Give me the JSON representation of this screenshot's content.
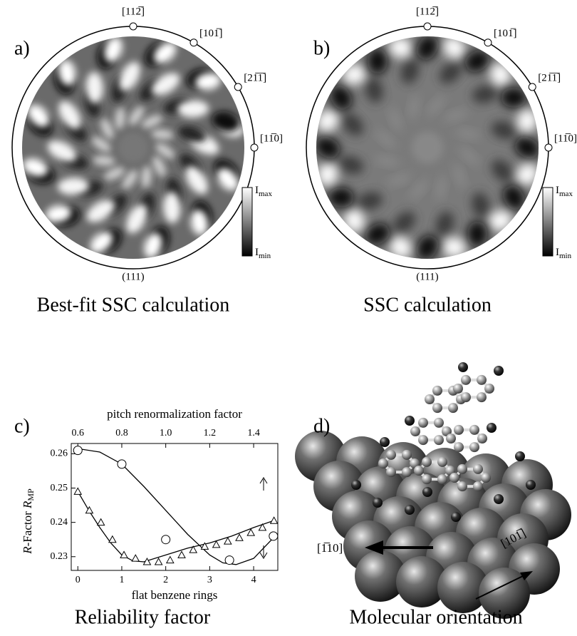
{
  "panels": [
    {
      "label": "a)",
      "caption": "Best-fit SSC calculation",
      "directions": [
        "[112̅]",
        "[101̅]",
        "[21̅1̅]",
        "[11̅0]",
        "(111)"
      ],
      "colorbar": {
        "symbol": "I",
        "max": "max",
        "min": "min"
      }
    },
    {
      "label": "b)",
      "caption": "SSC calculation",
      "directions": [
        "[112̅]",
        "[101̅]",
        "[21̅1̅]",
        "[11̅0]",
        "(111)"
      ],
      "colorbar": {
        "symbol": "I",
        "max": "max",
        "min": "min"
      }
    },
    {
      "label": "c)",
      "caption": "Reliability factor"
    },
    {
      "label": "d)",
      "caption": "Molecular orientation",
      "directions": [
        "[1̅10]",
        "[101̅]"
      ]
    }
  ],
  "chart_data": {
    "type": "scatter",
    "xlabel": "flat benzene rings",
    "x2label": "pitch renormalization factor",
    "ylabel": [
      "R",
      "-Factor ",
      "R",
      "MP"
    ],
    "xlim": [
      -0.15,
      4.55
    ],
    "xticks": [
      0,
      1,
      2,
      3,
      4
    ],
    "x2lim": [
      0.57,
      1.51
    ],
    "x2ticks": [
      0.6,
      0.8,
      {
        "value": 1,
        "label": "1.0"
      },
      1.2,
      1.4
    ],
    "ylim": [
      0.226,
      0.263
    ],
    "yticks": [
      0.23,
      0.24,
      0.25,
      0.26
    ],
    "series": [
      {
        "marker": "circle",
        "color": "#000000",
        "x": [
          0,
          1,
          2,
          3.45,
          4.45
        ],
        "values": [
          0.261,
          0.257,
          0.235,
          0.229,
          0.236
        ]
      },
      {
        "marker": "triangle",
        "color": "#000000",
        "x": [
          0,
          0.2625,
          0.525,
          0.7875,
          1.05,
          1.3125,
          1.575,
          1.8375,
          2.1,
          2.3625,
          2.625,
          2.8875,
          3.15,
          3.4125,
          3.675,
          3.9375,
          4.2,
          4.4625
        ],
        "values": [
          0.249,
          0.2435,
          0.24,
          0.235,
          0.2305,
          0.2295,
          0.2285,
          0.2285,
          0.229,
          0.2305,
          0.232,
          0.233,
          0.2335,
          0.2345,
          0.2355,
          0.237,
          0.2385,
          0.2405
        ]
      },
      {
        "marker": "line",
        "color": "#000000",
        "x": [
          0,
          0.5,
          1,
          1.5,
          2,
          2.5,
          3,
          3.3,
          3.6,
          4,
          4.45
        ],
        "values": [
          0.2615,
          0.2605,
          0.257,
          0.2505,
          0.2435,
          0.2365,
          0.2305,
          0.2282,
          0.2277,
          0.2295,
          0.2355
        ]
      },
      {
        "marker": "line",
        "color": "#000000",
        "x": [
          0,
          0.25,
          0.5,
          0.75,
          1,
          1.25,
          1.5,
          2,
          2.5,
          3,
          3.5,
          4,
          4.45
        ],
        "values": [
          0.249,
          0.2435,
          0.2385,
          0.234,
          0.2305,
          0.2288,
          0.2285,
          0.2305,
          0.2325,
          0.234,
          0.236,
          0.2385,
          0.2405
        ]
      }
    ]
  }
}
